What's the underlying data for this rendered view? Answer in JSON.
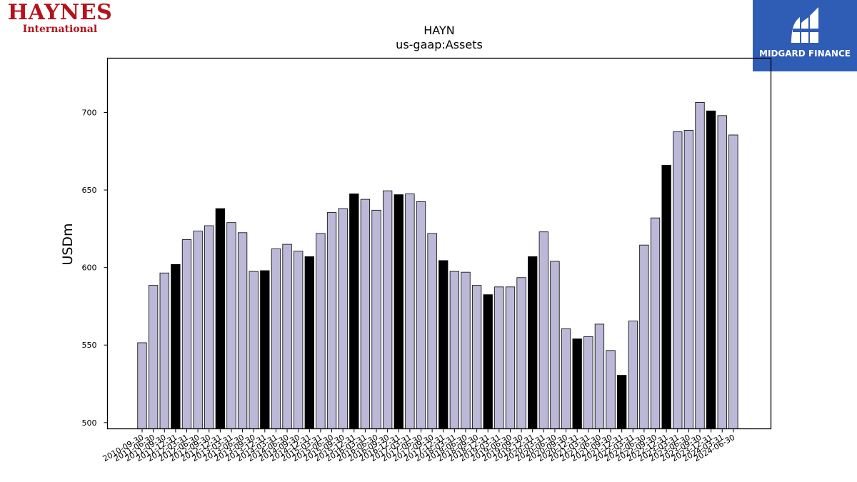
{
  "logos": {
    "left_brand": "HAYNES",
    "left_sub": "International",
    "right_name": "MIDGARD FINANCE"
  },
  "colors": {
    "bar_light": "#bcb8d8",
    "bar_dark": "#000000",
    "logo_red": "#b5121b",
    "logo_blue": "#2f5cb5"
  },
  "chart_data": {
    "type": "bar",
    "title": "HAYN",
    "subtitle": "us-gaap:Assets",
    "ylabel": "USDm",
    "xlabel": "",
    "ylim": [
      496,
      735
    ],
    "yticks": [
      500,
      550,
      600,
      650,
      700
    ],
    "grid": false,
    "categories": [
      "2010-09-30",
      "2011-06-30",
      "2011-09-30",
      "2011-12-31",
      "2012-03-31",
      "2012-06-30",
      "2012-09-30",
      "2012-12-31",
      "2013-03-31",
      "2013-06-30",
      "2013-09-30",
      "2013-12-31",
      "2014-03-31",
      "2014-06-30",
      "2014-09-30",
      "2014-12-31",
      "2015-03-31",
      "2015-06-30",
      "2015-09-30",
      "2015-12-31",
      "2016-03-31",
      "2016-06-30",
      "2016-09-30",
      "2016-12-31",
      "2017-03-31",
      "2017-06-30",
      "2017-09-30",
      "2017-12-31",
      "2018-03-31",
      "2018-06-30",
      "2018-09-30",
      "2018-12-31",
      "2019-03-31",
      "2019-06-30",
      "2019-09-30",
      "2019-12-31",
      "2020-03-31",
      "2020-06-30",
      "2020-09-30",
      "2020-12-31",
      "2021-03-31",
      "2021-06-30",
      "2021-09-30",
      "2021-12-31",
      "2022-03-31",
      "2022-06-30",
      "2022-09-30",
      "2022-12-31",
      "2023-03-31",
      "2023-06-30",
      "2023-09-30",
      "2023-12-31",
      "2024-03-31",
      "2024-06-30"
    ],
    "values": [
      551.5,
      588.5,
      596.5,
      602.0,
      618.0,
      623.5,
      627.0,
      638.0,
      629.0,
      622.5,
      597.5,
      598.0,
      612.0,
      615.0,
      610.5,
      607.0,
      622.0,
      635.5,
      638.0,
      647.5,
      644.0,
      637.0,
      649.5,
      647.0,
      647.5,
      642.5,
      622.0,
      604.5,
      597.5,
      597.0,
      588.5,
      582.5,
      587.5,
      587.5,
      593.5,
      607.0,
      623.0,
      604.0,
      560.5,
      554.0,
      555.5,
      563.5,
      546.5,
      530.5,
      565.5,
      614.5,
      632.0,
      666.0,
      687.5,
      688.5,
      706.5,
      701.0,
      698.0,
      685.5
    ],
    "highlighted": [
      false,
      false,
      false,
      true,
      false,
      false,
      false,
      true,
      false,
      false,
      false,
      true,
      false,
      false,
      false,
      true,
      false,
      false,
      false,
      true,
      false,
      false,
      false,
      true,
      false,
      false,
      false,
      true,
      false,
      false,
      false,
      true,
      false,
      false,
      false,
      true,
      false,
      false,
      false,
      true,
      false,
      false,
      false,
      true,
      false,
      false,
      false,
      true,
      false,
      false,
      false,
      true,
      false,
      false
    ]
  }
}
